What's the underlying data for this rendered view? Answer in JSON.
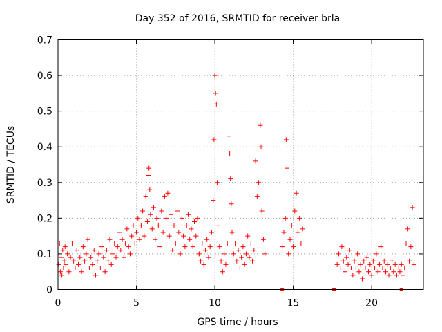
{
  "chart_data": {
    "type": "scatter",
    "title": "Day 352 of 2016, SRMTID for receiver brla",
    "xlabel": "GPS time / hours",
    "ylabel": "SRMTID / TECUs",
    "xlim": [
      0,
      23.3
    ],
    "ylim": [
      0,
      0.7
    ],
    "xticks": [
      0,
      5,
      10,
      15,
      20
    ],
    "xtick_labels": [
      "0",
      "5",
      "10",
      "15",
      "20"
    ],
    "yticks": [
      0,
      0.1,
      0.2,
      0.3,
      0.4,
      0.5,
      0.6,
      0.7
    ],
    "ytick_labels": [
      "0",
      "0.1",
      "0.2",
      "0.3",
      "0.4",
      "0.5",
      "0.6",
      "0.7"
    ],
    "grid": true,
    "marker": "+",
    "color": "#ff0000",
    "series": [
      {
        "name": "SRMTID",
        "points": [
          [
            0.05,
            0.07
          ],
          [
            0.1,
            0.13
          ],
          [
            0.15,
            0.05
          ],
          [
            0.2,
            0.09
          ],
          [
            0.25,
            0.04
          ],
          [
            0.3,
            0.11
          ],
          [
            0.35,
            0.06
          ],
          [
            0.4,
            0.08
          ],
          [
            0.45,
            0.12
          ],
          [
            0.5,
            0.07
          ],
          [
            0.6,
            0.1
          ],
          [
            0.7,
            0.05
          ],
          [
            0.8,
            0.09
          ],
          [
            0.9,
            0.13
          ],
          [
            1.0,
            0.08
          ],
          [
            1.1,
            0.06
          ],
          [
            1.2,
            0.11
          ],
          [
            1.3,
            0.07
          ],
          [
            1.4,
            0.09
          ],
          [
            1.5,
            0.05
          ],
          [
            1.6,
            0.12
          ],
          [
            1.7,
            0.08
          ],
          [
            1.8,
            0.1
          ],
          [
            1.9,
            0.14
          ],
          [
            2.0,
            0.06
          ],
          [
            2.1,
            0.09
          ],
          [
            2.2,
            0.07
          ],
          [
            2.3,
            0.11
          ],
          [
            2.4,
            0.04
          ],
          [
            2.5,
            0.08
          ],
          [
            2.6,
            0.1
          ],
          [
            2.7,
            0.06
          ],
          [
            2.8,
            0.12
          ],
          [
            2.9,
            0.09
          ],
          [
            3.0,
            0.05
          ],
          [
            3.1,
            0.11
          ],
          [
            3.2,
            0.08
          ],
          [
            3.3,
            0.14
          ],
          [
            3.4,
            0.07
          ],
          [
            3.5,
            0.1
          ],
          [
            3.6,
            0.13
          ],
          [
            3.7,
            0.09
          ],
          [
            3.8,
            0.12
          ],
          [
            3.9,
            0.16
          ],
          [
            4.0,
            0.11
          ],
          [
            4.1,
            0.14
          ],
          [
            4.2,
            0.09
          ],
          [
            4.3,
            0.13
          ],
          [
            4.4,
            0.17
          ],
          [
            4.5,
            0.12
          ],
          [
            4.6,
            0.1
          ],
          [
            4.7,
            0.15
          ],
          [
            4.8,
            0.18
          ],
          [
            4.9,
            0.13
          ],
          [
            5.0,
            0.16
          ],
          [
            5.1,
            0.2
          ],
          [
            5.2,
            0.14
          ],
          [
            5.3,
            0.18
          ],
          [
            5.4,
            0.22
          ],
          [
            5.5,
            0.15
          ],
          [
            5.6,
            0.26
          ],
          [
            5.7,
            0.19
          ],
          [
            5.75,
            0.32
          ],
          [
            5.8,
            0.34
          ],
          [
            5.85,
            0.28
          ],
          [
            5.9,
            0.21
          ],
          [
            6.0,
            0.17
          ],
          [
            6.1,
            0.23
          ],
          [
            6.2,
            0.14
          ],
          [
            6.3,
            0.2
          ],
          [
            6.4,
            0.18
          ],
          [
            6.5,
            0.12
          ],
          [
            6.6,
            0.22
          ],
          [
            6.7,
            0.16
          ],
          [
            6.8,
            0.26
          ],
          [
            6.9,
            0.2
          ],
          [
            7.0,
            0.27
          ],
          [
            7.1,
            0.15
          ],
          [
            7.2,
            0.21
          ],
          [
            7.3,
            0.11
          ],
          [
            7.4,
            0.18
          ],
          [
            7.5,
            0.13
          ],
          [
            7.6,
            0.22
          ],
          [
            7.7,
            0.16
          ],
          [
            7.8,
            0.1
          ],
          [
            7.9,
            0.2
          ],
          [
            8.0,
            0.15
          ],
          [
            8.1,
            0.12
          ],
          [
            8.2,
            0.18
          ],
          [
            8.3,
            0.21
          ],
          [
            8.4,
            0.14
          ],
          [
            8.5,
            0.17
          ],
          [
            8.6,
            0.12
          ],
          [
            8.7,
            0.19
          ],
          [
            8.8,
            0.15
          ],
          [
            8.9,
            0.2
          ],
          [
            9.0,
            0.1
          ],
          [
            9.1,
            0.08
          ],
          [
            9.2,
            0.13
          ],
          [
            9.3,
            0.07
          ],
          [
            9.4,
            0.11
          ],
          [
            9.5,
            0.14
          ],
          [
            9.6,
            0.09
          ],
          [
            9.7,
            0.12
          ],
          [
            9.8,
            0.16
          ],
          [
            9.9,
            0.25
          ],
          [
            9.95,
            0.42
          ],
          [
            10.0,
            0.6
          ],
          [
            10.05,
            0.55
          ],
          [
            10.1,
            0.52
          ],
          [
            10.15,
            0.3
          ],
          [
            10.2,
            0.18
          ],
          [
            10.3,
            0.12
          ],
          [
            10.4,
            0.08
          ],
          [
            10.5,
            0.05
          ],
          [
            10.6,
            0.1
          ],
          [
            10.7,
            0.07
          ],
          [
            10.8,
            0.13
          ],
          [
            10.9,
            0.43
          ],
          [
            10.95,
            0.38
          ],
          [
            11.0,
            0.31
          ],
          [
            11.05,
            0.24
          ],
          [
            11.1,
            0.16
          ],
          [
            11.2,
            0.1
          ],
          [
            11.3,
            0.13
          ],
          [
            11.4,
            0.08
          ],
          [
            11.5,
            0.11
          ],
          [
            11.6,
            0.06
          ],
          [
            11.7,
            0.09
          ],
          [
            11.8,
            0.12
          ],
          [
            11.9,
            0.07
          ],
          [
            12.0,
            0.1
          ],
          [
            12.1,
            0.15
          ],
          [
            12.2,
            0.09
          ],
          [
            12.3,
            0.13
          ],
          [
            12.4,
            0.08
          ],
          [
            12.5,
            0.11
          ],
          [
            12.6,
            0.36
          ],
          [
            12.7,
            0.26
          ],
          [
            12.8,
            0.3
          ],
          [
            12.9,
            0.46
          ],
          [
            12.95,
            0.4
          ],
          [
            13.0,
            0.22
          ],
          [
            13.1,
            0.14
          ],
          [
            13.2,
            0.1
          ],
          [
            14.3,
            0.12
          ],
          [
            14.4,
            0.16
          ],
          [
            14.5,
            0.2
          ],
          [
            14.55,
            0.42
          ],
          [
            14.6,
            0.34
          ],
          [
            14.7,
            0.1
          ],
          [
            14.8,
            0.14
          ],
          [
            14.9,
            0.18
          ],
          [
            15.0,
            0.12
          ],
          [
            15.1,
            0.22
          ],
          [
            15.2,
            0.27
          ],
          [
            15.3,
            0.16
          ],
          [
            15.4,
            0.2
          ],
          [
            15.5,
            0.13
          ],
          [
            15.6,
            0.17
          ],
          [
            17.8,
            0.07
          ],
          [
            17.9,
            0.1
          ],
          [
            18.0,
            0.06
          ],
          [
            18.1,
            0.12
          ],
          [
            18.2,
            0.08
          ],
          [
            18.3,
            0.05
          ],
          [
            18.4,
            0.09
          ],
          [
            18.5,
            0.07
          ],
          [
            18.6,
            0.11
          ],
          [
            18.7,
            0.06
          ],
          [
            18.8,
            0.04
          ],
          [
            18.9,
            0.08
          ],
          [
            19.0,
            0.06
          ],
          [
            19.1,
            0.1
          ],
          [
            19.2,
            0.05
          ],
          [
            19.3,
            0.07
          ],
          [
            19.4,
            0.03
          ],
          [
            19.5,
            0.08
          ],
          [
            19.6,
            0.06
          ],
          [
            19.7,
            0.09
          ],
          [
            19.8,
            0.05
          ],
          [
            19.9,
            0.07
          ],
          [
            20.0,
            0.04
          ],
          [
            20.1,
            0.08
          ],
          [
            20.2,
            0.06
          ],
          [
            20.3,
            0.1
          ],
          [
            20.4,
            0.05
          ],
          [
            20.5,
            0.07
          ],
          [
            20.6,
            0.12
          ],
          [
            20.7,
            0.06
          ],
          [
            20.8,
            0.08
          ],
          [
            20.9,
            0.05
          ],
          [
            21.0,
            0.07
          ],
          [
            21.1,
            0.04
          ],
          [
            21.2,
            0.06
          ],
          [
            21.3,
            0.08
          ],
          [
            21.4,
            0.05
          ],
          [
            21.5,
            0.07
          ],
          [
            21.6,
            0.04
          ],
          [
            21.7,
            0.06
          ],
          [
            21.8,
            0.05
          ],
          [
            21.9,
            0.07
          ],
          [
            22.0,
            0.04
          ],
          [
            22.1,
            0.06
          ],
          [
            22.2,
            0.13
          ],
          [
            22.3,
            0.17
          ],
          [
            22.4,
            0.08
          ],
          [
            22.5,
            0.12
          ],
          [
            22.6,
            0.23
          ],
          [
            22.7,
            0.07
          ]
        ]
      }
    ],
    "zero_markers": [
      14.3,
      17.6,
      21.9
    ]
  }
}
